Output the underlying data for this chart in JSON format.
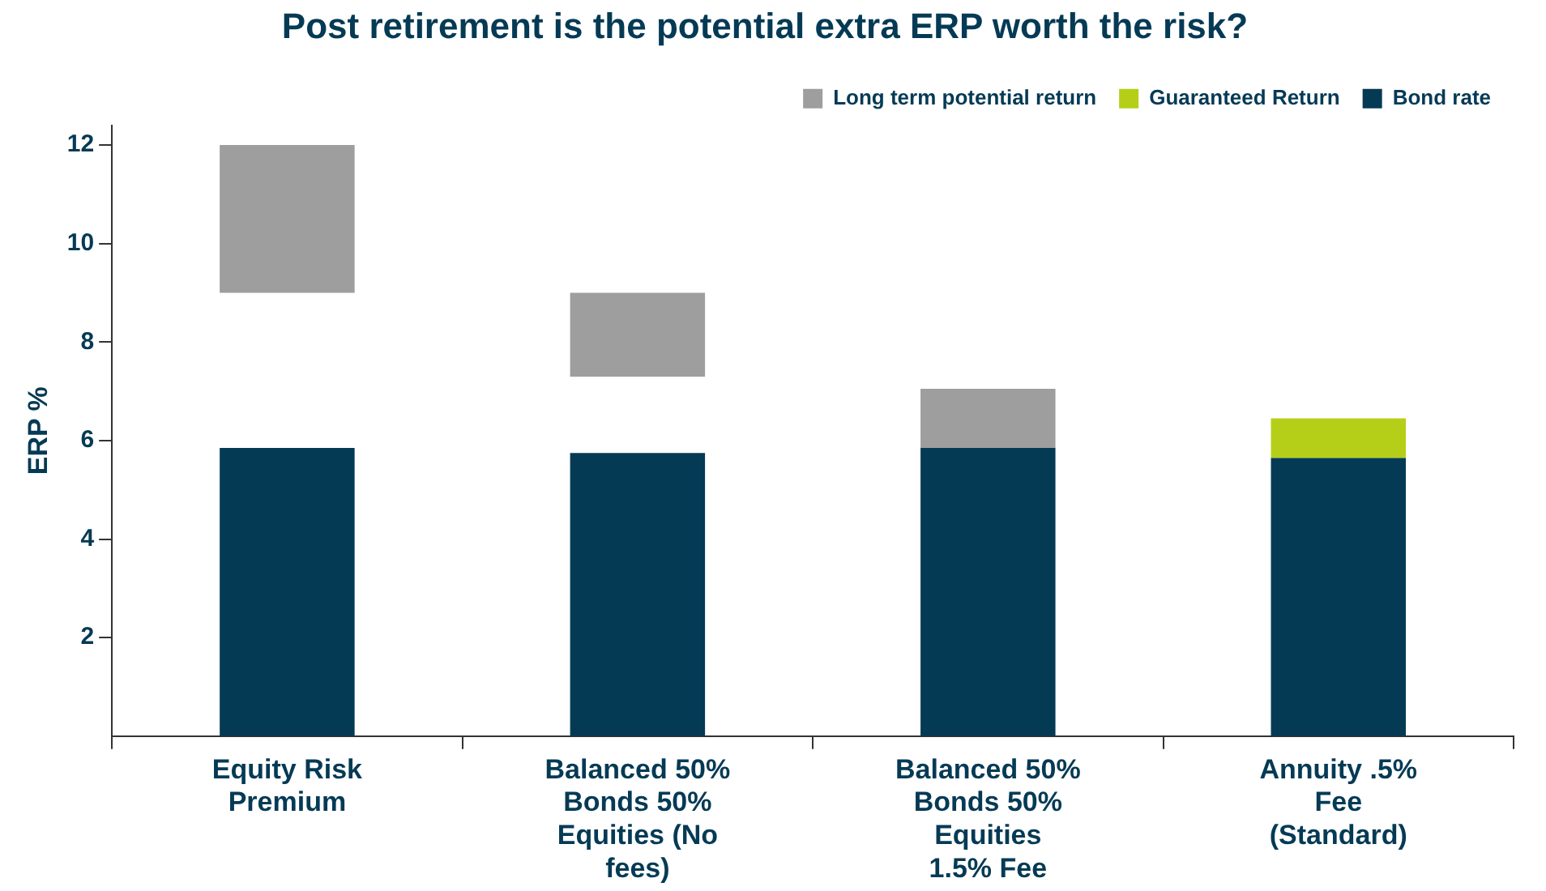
{
  "chart_data": {
    "type": "bar",
    "title": "Post retirement is the potential extra ERP worth the risk?",
    "ylabel": "ERP %",
    "categories": [
      "Equity Risk Premium",
      "Balanced 50% Bonds 50% Equities (No fees)",
      "Balanced 50% Bonds 50% Equities 1.5% Fee",
      "Annuity .5% Fee (Standard)"
    ],
    "series": [
      {
        "name": "Long term potential return",
        "color": "#9e9e9e",
        "base": [
          9,
          7.3,
          5.85,
          null
        ],
        "values": [
          3,
          1.7,
          1.2,
          null
        ]
      },
      {
        "name": "Guaranteed Return",
        "color": "#b5cf18",
        "base": [
          null,
          null,
          null,
          5.65
        ],
        "values": [
          null,
          null,
          null,
          0.8
        ]
      },
      {
        "name": "Bond rate",
        "color": "#053a55",
        "values": [
          5.85,
          5.75,
          5.85,
          5.65
        ]
      }
    ],
    "ylim": [
      0,
      12.4
    ],
    "yticks": [
      2,
      4,
      6,
      8,
      10,
      12
    ],
    "grid": false,
    "legend": "top right"
  }
}
